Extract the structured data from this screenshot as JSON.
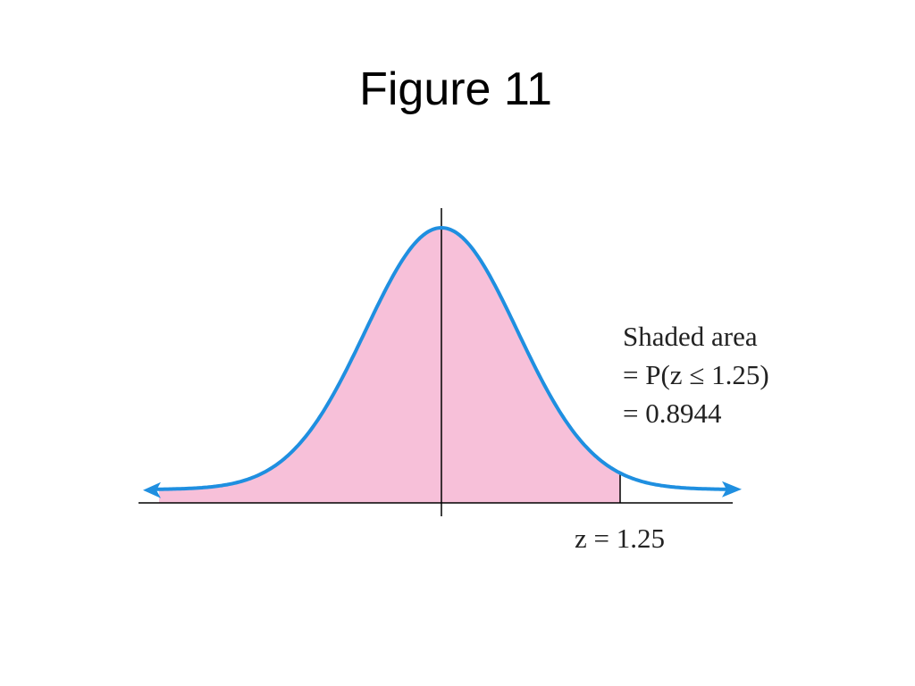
{
  "title": "Figure 11",
  "annotation": {
    "lines": [
      "Shaded area",
      "= P(z ≤ 1.25)",
      "= 0.8944"
    ]
  },
  "cutoff_label": "z = 1.25"
}
